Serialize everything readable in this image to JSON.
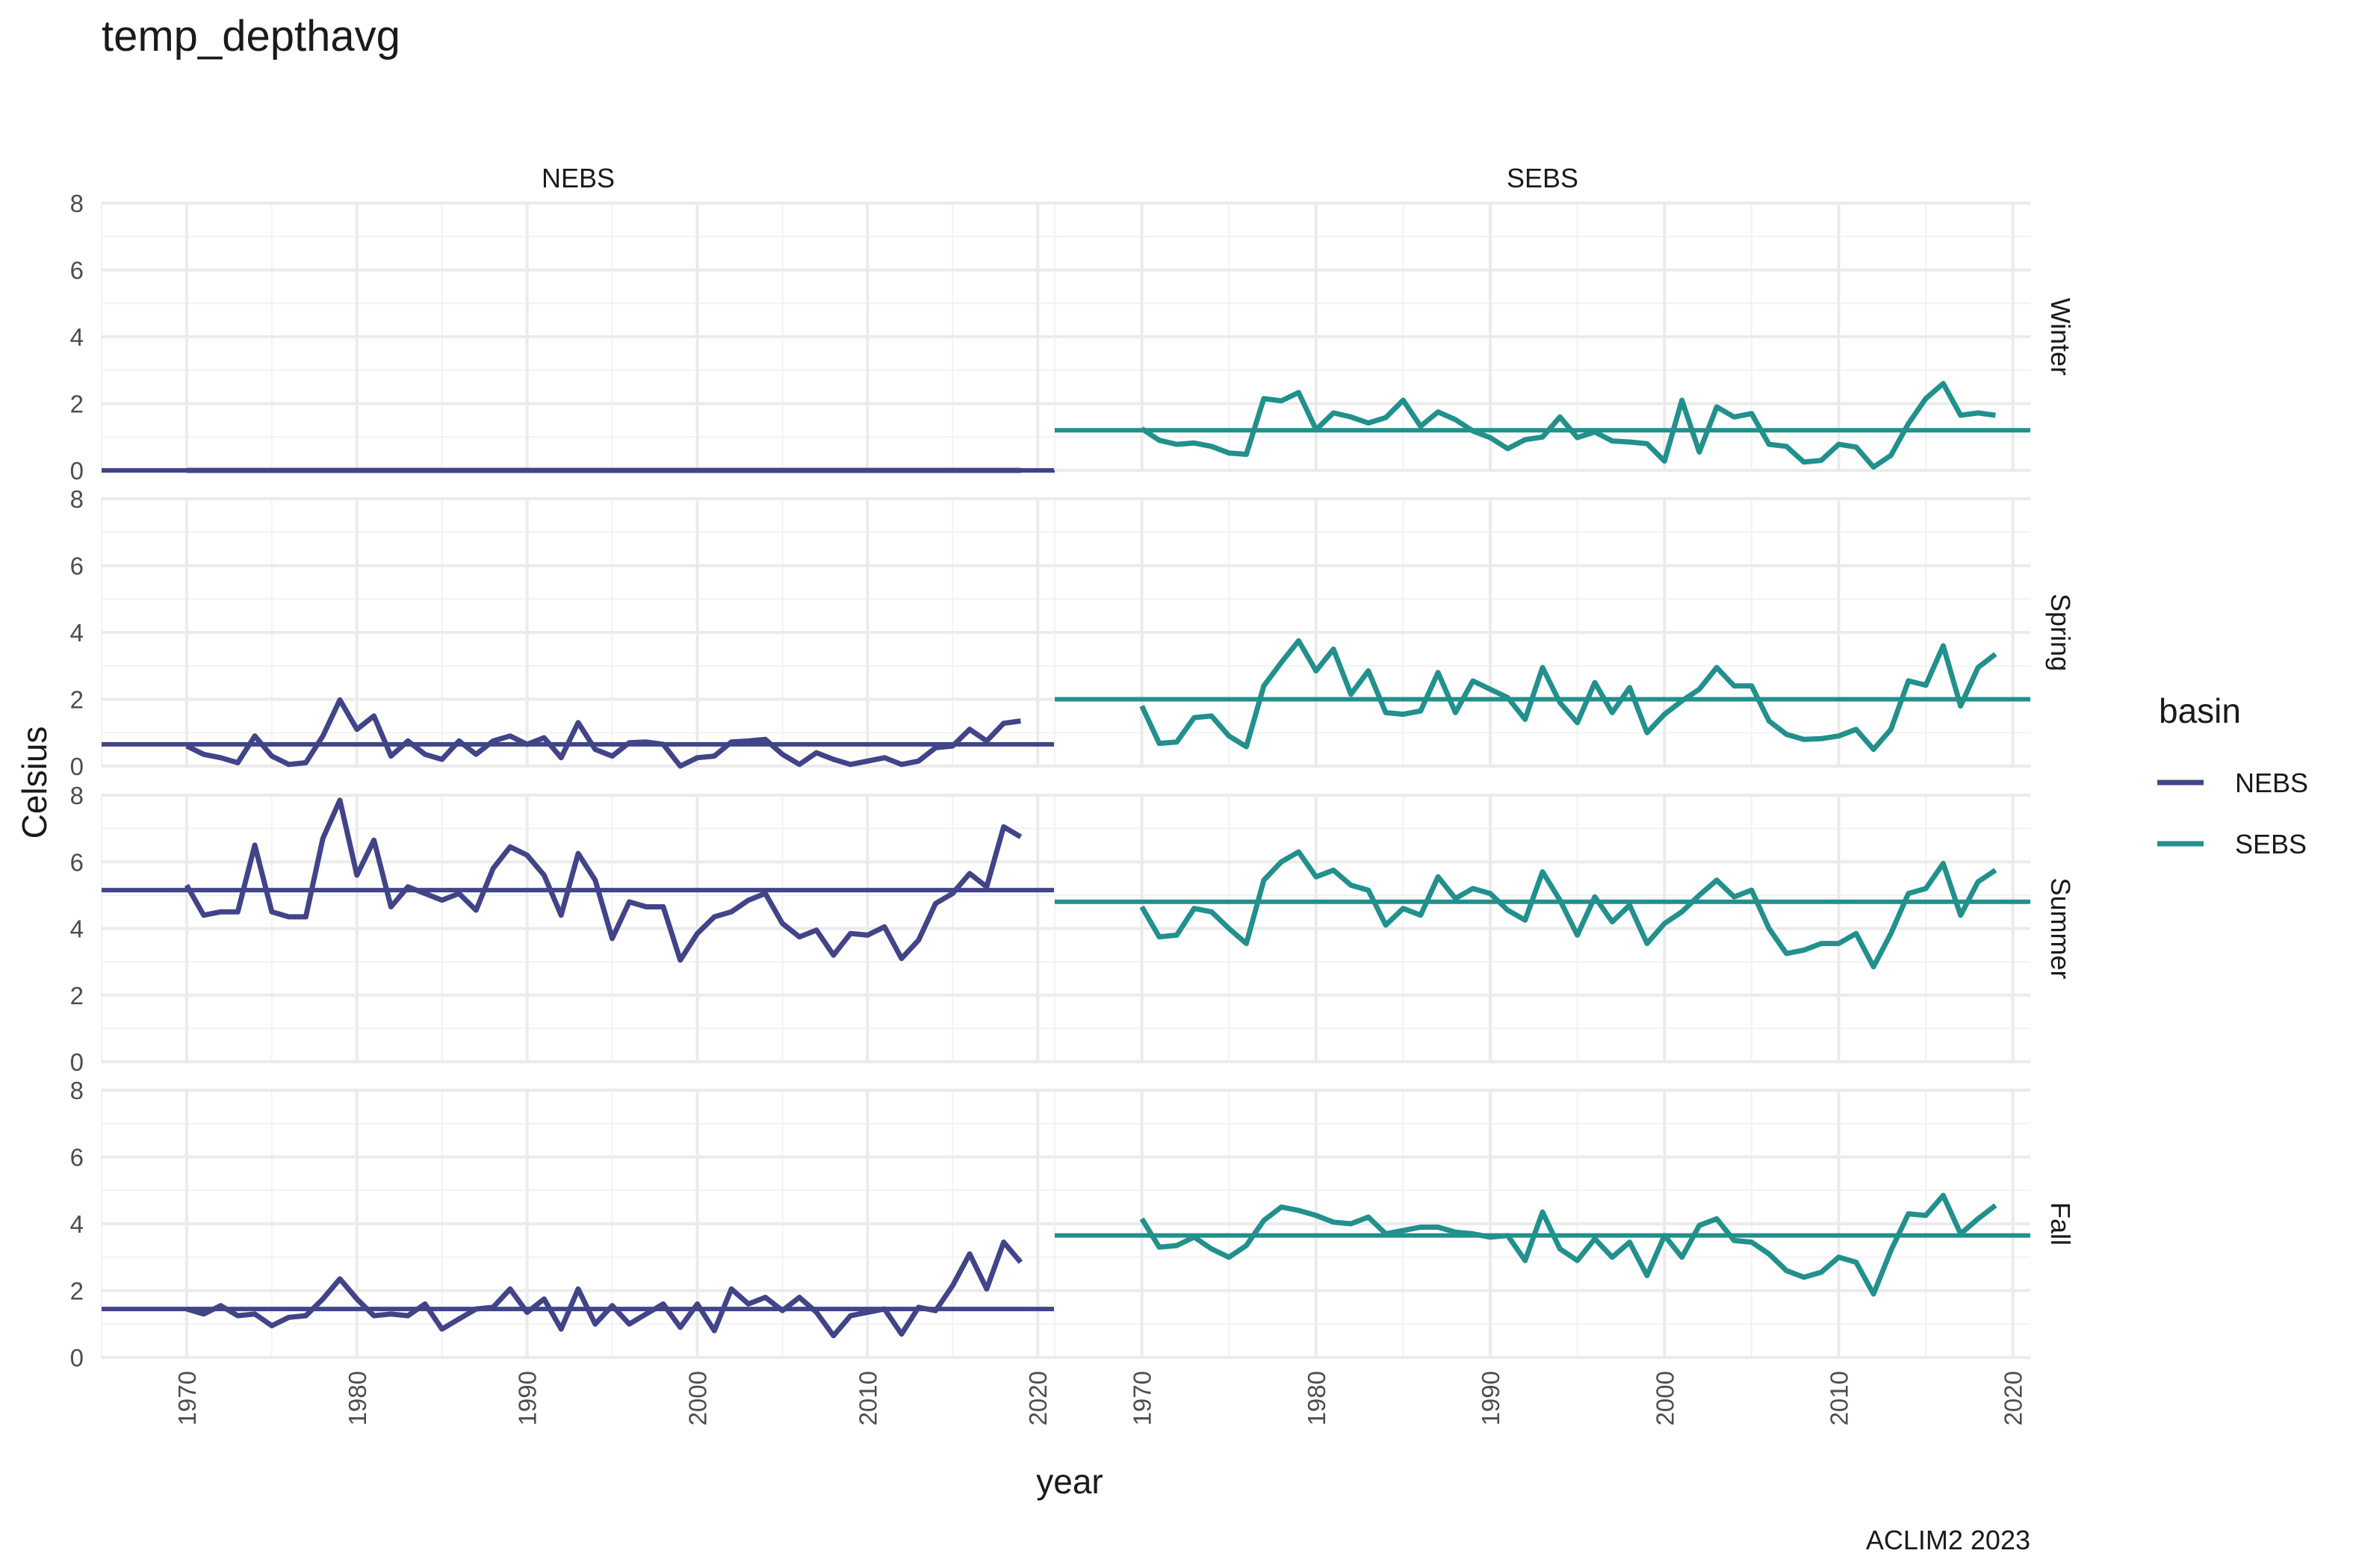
{
  "chart_data": {
    "type": "line",
    "title": "temp_depthavg",
    "xlabel": "year",
    "ylabel": "Celsius",
    "caption": "ACLIM2 2023",
    "xlim": [
      1965,
      2021
    ],
    "ylim": [
      0,
      8
    ],
    "x_ticks": [
      1970,
      1980,
      1990,
      2000,
      2010,
      2020
    ],
    "y_ticks": [
      0,
      2,
      4,
      6,
      8
    ],
    "columns": [
      "NEBS",
      "SEBS"
    ],
    "rows": [
      "Winter",
      "Spring",
      "Summer",
      "Fall"
    ],
    "legend": {
      "title": "basin",
      "entries": [
        {
          "name": "NEBS",
          "color": "#414487"
        },
        {
          "name": "SEBS",
          "color": "#22908C"
        }
      ]
    },
    "years": [
      1970,
      1971,
      1972,
      1973,
      1974,
      1975,
      1976,
      1977,
      1978,
      1979,
      1980,
      1981,
      1982,
      1983,
      1984,
      1985,
      1986,
      1987,
      1988,
      1989,
      1990,
      1991,
      1992,
      1993,
      1994,
      1995,
      1996,
      1997,
      1998,
      1999,
      2000,
      2001,
      2002,
      2003,
      2004,
      2005,
      2006,
      2007,
      2008,
      2009,
      2010,
      2011,
      2012,
      2013,
      2014,
      2015,
      2016,
      2017,
      2018,
      2019
    ],
    "panels": [
      {
        "basin": "NEBS",
        "season": "Winter",
        "mean": 0.0,
        "values": [
          0,
          0,
          0,
          0,
          0,
          0,
          0,
          0,
          0,
          0,
          0,
          0,
          0,
          0,
          0,
          0,
          0,
          0,
          0,
          0,
          0,
          0,
          0,
          0,
          0,
          0,
          0,
          0,
          0,
          0,
          0,
          0,
          0,
          0,
          0,
          0,
          0,
          0,
          0,
          0,
          0,
          0,
          0,
          0,
          0,
          0,
          0,
          0,
          0,
          0
        ]
      },
      {
        "basin": "SEBS",
        "season": "Winter",
        "mean": 1.2,
        "values": [
          1.25,
          0.9,
          0.78,
          0.82,
          0.72,
          0.52,
          0.48,
          2.15,
          2.08,
          2.33,
          1.22,
          1.72,
          1.6,
          1.42,
          1.58,
          2.1,
          1.32,
          1.75,
          1.52,
          1.18,
          0.98,
          0.65,
          0.92,
          1.0,
          1.6,
          0.98,
          1.15,
          0.88,
          0.85,
          0.8,
          0.28,
          2.1,
          0.55,
          1.9,
          1.6,
          1.7,
          0.78,
          0.72,
          0.25,
          0.3,
          0.78,
          0.7,
          0.1,
          0.45,
          1.4,
          2.15,
          2.6,
          1.65,
          1.72,
          1.65
        ]
      },
      {
        "basin": "NEBS",
        "season": "Spring",
        "mean": 0.65,
        "values": [
          0.6,
          0.35,
          0.25,
          0.1,
          0.9,
          0.3,
          0.05,
          0.1,
          0.9,
          1.98,
          1.1,
          1.5,
          0.3,
          0.75,
          0.35,
          0.2,
          0.75,
          0.35,
          0.75,
          0.9,
          0.65,
          0.85,
          0.25,
          1.3,
          0.5,
          0.3,
          0.7,
          0.72,
          0.65,
          0.0,
          0.25,
          0.3,
          0.72,
          0.75,
          0.8,
          0.35,
          0.05,
          0.4,
          0.2,
          0.05,
          0.15,
          0.25,
          0.05,
          0.15,
          0.55,
          0.6,
          1.1,
          0.75,
          1.28,
          1.35
        ]
      },
      {
        "basin": "SEBS",
        "season": "Spring",
        "mean": 2.0,
        "values": [
          1.8,
          0.68,
          0.72,
          1.45,
          1.5,
          0.9,
          0.58,
          2.4,
          3.1,
          3.75,
          2.85,
          3.5,
          2.15,
          2.85,
          1.6,
          1.55,
          1.65,
          2.8,
          1.6,
          2.55,
          2.3,
          2.05,
          1.4,
          2.95,
          1.9,
          1.3,
          2.5,
          1.6,
          2.35,
          1.0,
          1.55,
          1.95,
          2.3,
          2.95,
          2.4,
          2.4,
          1.35,
          0.95,
          0.8,
          0.82,
          0.9,
          1.1,
          0.5,
          1.1,
          2.55,
          2.42,
          3.6,
          1.8,
          2.95,
          3.35
        ]
      },
      {
        "basin": "NEBS",
        "season": "Summer",
        "mean": 5.15,
        "values": [
          5.3,
          4.4,
          4.5,
          4.5,
          6.5,
          4.5,
          4.35,
          4.35,
          6.7,
          7.85,
          5.6,
          6.65,
          4.65,
          5.25,
          5.05,
          4.85,
          5.05,
          4.55,
          5.8,
          6.45,
          6.2,
          5.6,
          4.4,
          6.25,
          5.45,
          3.7,
          4.8,
          4.65,
          4.65,
          3.05,
          3.85,
          4.35,
          4.5,
          4.85,
          5.05,
          4.15,
          3.75,
          3.95,
          3.2,
          3.85,
          3.8,
          4.05,
          3.1,
          3.65,
          4.75,
          5.05,
          5.65,
          5.25,
          7.05,
          6.75
        ]
      },
      {
        "basin": "SEBS",
        "season": "Summer",
        "mean": 4.8,
        "values": [
          4.65,
          3.75,
          3.8,
          4.6,
          4.5,
          4.0,
          3.55,
          5.45,
          6.0,
          6.3,
          5.55,
          5.75,
          5.3,
          5.15,
          4.1,
          4.6,
          4.4,
          5.55,
          4.9,
          5.2,
          5.05,
          4.55,
          4.25,
          5.7,
          4.85,
          3.8,
          4.95,
          4.2,
          4.7,
          3.55,
          4.15,
          4.5,
          5.0,
          5.45,
          4.95,
          5.15,
          4.0,
          3.25,
          3.35,
          3.55,
          3.55,
          3.85,
          2.85,
          3.85,
          5.05,
          5.2,
          5.95,
          4.4,
          5.4,
          5.75
        ]
      },
      {
        "basin": "NEBS",
        "season": "Fall",
        "mean": 1.45,
        "values": [
          1.45,
          1.3,
          1.55,
          1.25,
          1.3,
          0.95,
          1.2,
          1.25,
          1.75,
          2.35,
          1.75,
          1.25,
          1.3,
          1.25,
          1.6,
          0.85,
          1.15,
          1.45,
          1.5,
          2.05,
          1.35,
          1.75,
          0.85,
          2.05,
          1.0,
          1.55,
          1.0,
          1.3,
          1.6,
          0.9,
          1.6,
          0.8,
          2.05,
          1.6,
          1.8,
          1.4,
          1.8,
          1.35,
          0.65,
          1.25,
          1.35,
          1.45,
          0.7,
          1.5,
          1.4,
          2.15,
          3.1,
          2.05,
          3.45,
          2.85
        ]
      },
      {
        "basin": "SEBS",
        "season": "Fall",
        "mean": 3.65,
        "values": [
          4.15,
          3.3,
          3.35,
          3.6,
          3.25,
          3.0,
          3.35,
          4.1,
          4.5,
          4.4,
          4.25,
          4.05,
          4.0,
          4.2,
          3.7,
          3.8,
          3.9,
          3.9,
          3.75,
          3.7,
          3.6,
          3.65,
          2.9,
          4.35,
          3.25,
          2.9,
          3.55,
          3.0,
          3.45,
          2.45,
          3.65,
          3.0,
          3.95,
          4.15,
          3.5,
          3.45,
          3.1,
          2.6,
          2.4,
          2.55,
          3.0,
          2.85,
          1.9,
          3.2,
          4.3,
          4.25,
          4.85,
          3.7,
          4.15,
          4.55
        ]
      }
    ]
  }
}
